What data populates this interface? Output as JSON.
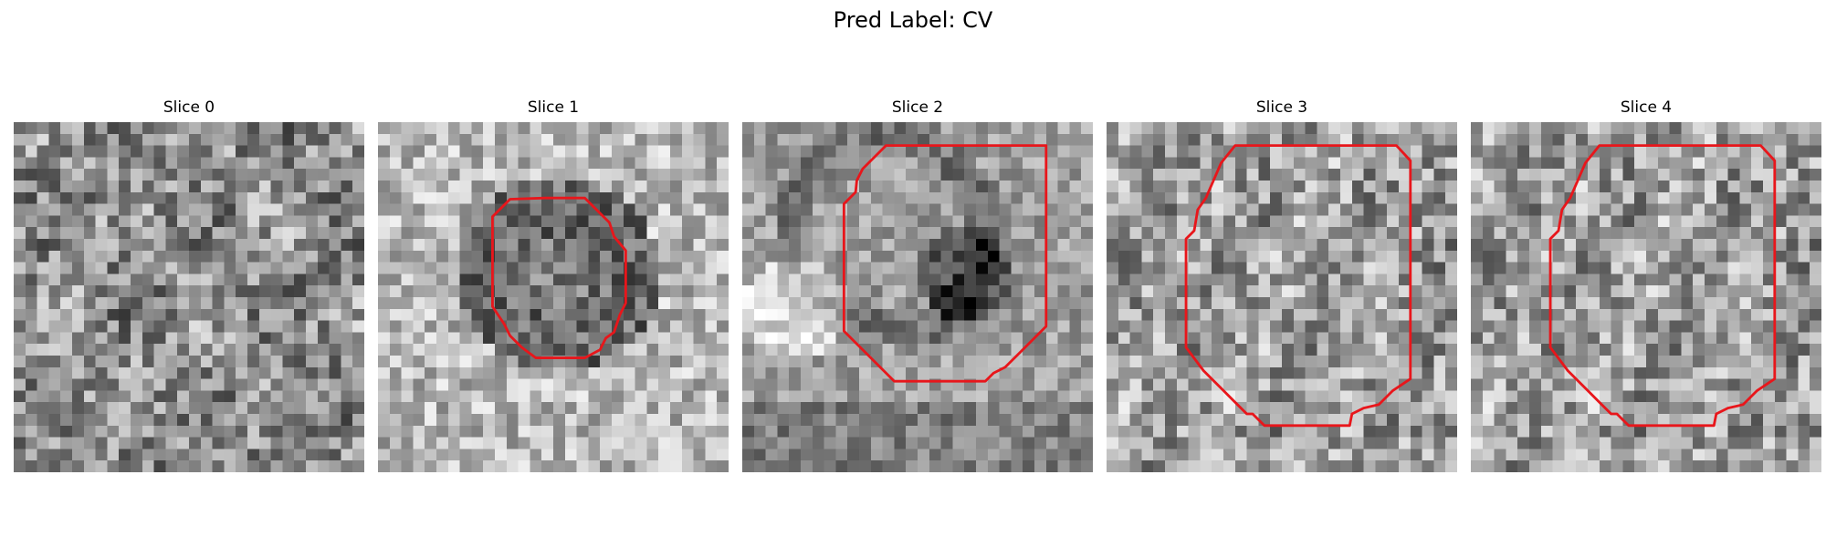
{
  "figure": {
    "title": "Pred Label: CV",
    "contour_color": "#e8161b",
    "panels": [
      {
        "title": "Slice 0",
        "has_contour": false,
        "seed": 11,
        "contrast": 0.55,
        "pattern": "noise"
      },
      {
        "title": "Slice 1",
        "has_contour": true,
        "seed": 23,
        "contrast": 0.75,
        "pattern": "dark-ring-small"
      },
      {
        "title": "Slice 2",
        "has_contour": true,
        "seed": 37,
        "contrast": 0.85,
        "pattern": "blobs"
      },
      {
        "title": "Slice 3",
        "has_contour": true,
        "seed": 51,
        "contrast": 0.65,
        "pattern": "bright-noise"
      },
      {
        "title": "Slice 4",
        "has_contour": true,
        "seed": 51,
        "contrast": 0.65,
        "pattern": "bright-noise"
      }
    ]
  }
}
